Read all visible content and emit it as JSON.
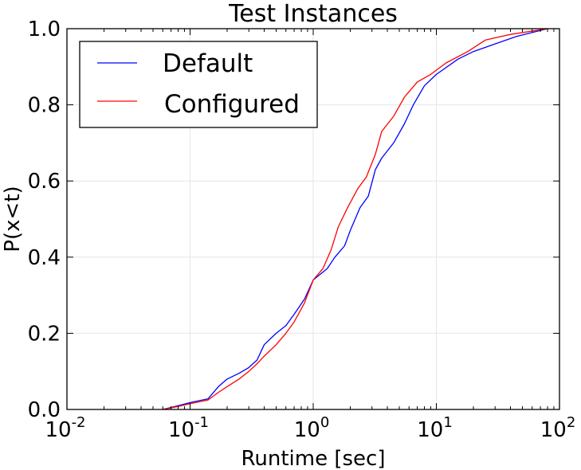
{
  "chart_data": {
    "type": "line",
    "title": "Test Instances",
    "xlabel": "Runtime [sec]",
    "ylabel": "P(x<t)",
    "xscale": "log",
    "xlim": [
      0.01,
      100
    ],
    "ylim": [
      0.0,
      1.0
    ],
    "grid": true,
    "legend_position": "top-left",
    "x_ticks": [
      {
        "value": 0.01,
        "base": "10",
        "exp": "-2"
      },
      {
        "value": 0.1,
        "base": "10",
        "exp": "-1"
      },
      {
        "value": 1,
        "base": "10",
        "exp": "0"
      },
      {
        "value": 10,
        "base": "10",
        "exp": "1"
      },
      {
        "value": 100,
        "base": "10",
        "exp": "2"
      }
    ],
    "y_ticks": [
      "0.0",
      "0.2",
      "0.4",
      "0.6",
      "0.8",
      "1.0"
    ],
    "series": [
      {
        "name": "Default",
        "color": "#0000ff",
        "points": [
          [
            0.06,
            0.0
          ],
          [
            0.08,
            0.01
          ],
          [
            0.1,
            0.018
          ],
          [
            0.14,
            0.028
          ],
          [
            0.17,
            0.06
          ],
          [
            0.2,
            0.08
          ],
          [
            0.25,
            0.095
          ],
          [
            0.3,
            0.11
          ],
          [
            0.35,
            0.13
          ],
          [
            0.4,
            0.17
          ],
          [
            0.5,
            0.2
          ],
          [
            0.6,
            0.22
          ],
          [
            0.7,
            0.25
          ],
          [
            0.85,
            0.29
          ],
          [
            1.0,
            0.34
          ],
          [
            1.3,
            0.37
          ],
          [
            1.5,
            0.4
          ],
          [
            1.8,
            0.43
          ],
          [
            2.0,
            0.47
          ],
          [
            2.4,
            0.53
          ],
          [
            2.8,
            0.56
          ],
          [
            3.2,
            0.63
          ],
          [
            3.6,
            0.66
          ],
          [
            4.5,
            0.7
          ],
          [
            5.5,
            0.75
          ],
          [
            6.5,
            0.8
          ],
          [
            8.0,
            0.85
          ],
          [
            10.0,
            0.88
          ],
          [
            15.0,
            0.92
          ],
          [
            20.0,
            0.94
          ],
          [
            30.0,
            0.96
          ],
          [
            45.0,
            0.98
          ],
          [
            80.0,
            1.0
          ]
        ]
      },
      {
        "name": "Configured",
        "color": "#ff0000",
        "points": [
          [
            0.06,
            0.0
          ],
          [
            0.08,
            0.008
          ],
          [
            0.1,
            0.015
          ],
          [
            0.14,
            0.025
          ],
          [
            0.17,
            0.045
          ],
          [
            0.2,
            0.06
          ],
          [
            0.25,
            0.08
          ],
          [
            0.3,
            0.1
          ],
          [
            0.35,
            0.12
          ],
          [
            0.4,
            0.14
          ],
          [
            0.5,
            0.17
          ],
          [
            0.6,
            0.2
          ],
          [
            0.7,
            0.23
          ],
          [
            0.85,
            0.28
          ],
          [
            1.0,
            0.34
          ],
          [
            1.2,
            0.37
          ],
          [
            1.4,
            0.42
          ],
          [
            1.6,
            0.48
          ],
          [
            1.9,
            0.53
          ],
          [
            2.3,
            0.58
          ],
          [
            2.7,
            0.61
          ],
          [
            3.2,
            0.67
          ],
          [
            3.6,
            0.73
          ],
          [
            4.5,
            0.77
          ],
          [
            5.5,
            0.82
          ],
          [
            7.0,
            0.86
          ],
          [
            9.0,
            0.88
          ],
          [
            12.0,
            0.91
          ],
          [
            18.0,
            0.94
          ],
          [
            25.0,
            0.97
          ],
          [
            40.0,
            0.985
          ],
          [
            80.0,
            1.0
          ]
        ]
      }
    ]
  }
}
